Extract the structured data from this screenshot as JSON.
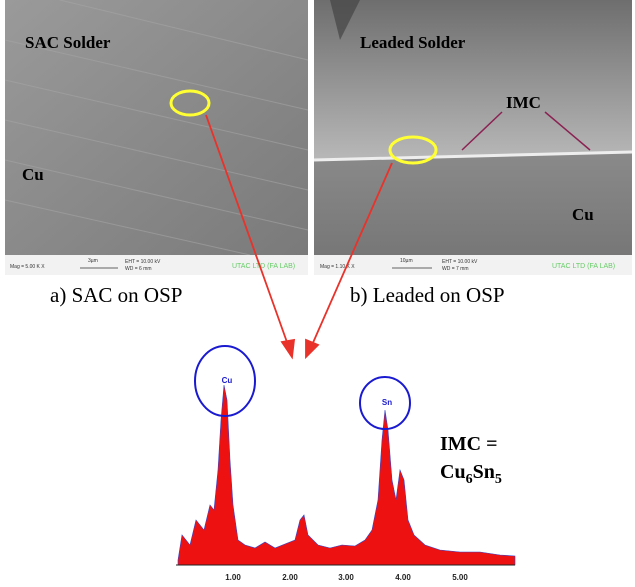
{
  "panel_a": {
    "label": "SAC Solder",
    "region": "Cu",
    "info": {
      "mag": "Mag = 5.00 K X",
      "scale": "3µm",
      "eht": "EHT = 10.00 kV",
      "wd": "WD = 6 mm",
      "lab": "UTAC LTD (FA LAB)"
    },
    "caption": "a) SAC on OSP"
  },
  "panel_b": {
    "label": "Leaded Solder",
    "imc": "IMC",
    "region": "Cu",
    "info": {
      "mag": "Mag = 1.10 K X",
      "scale": "10µm",
      "eht": "EHT = 10.00 kV",
      "wd": "WD = 7 mm",
      "lab": "UTAC LTD (FA LAB)"
    },
    "caption": "b) Leaded on OSP"
  },
  "spectrum": {
    "peaks": [
      "Cu",
      "Sn"
    ],
    "ticks": [
      "1.00",
      "2.00",
      "3.00",
      "4.00",
      "5.00"
    ],
    "note": "IMC =",
    "formula": [
      "Cu",
      "6",
      "Sn",
      "5"
    ]
  }
}
